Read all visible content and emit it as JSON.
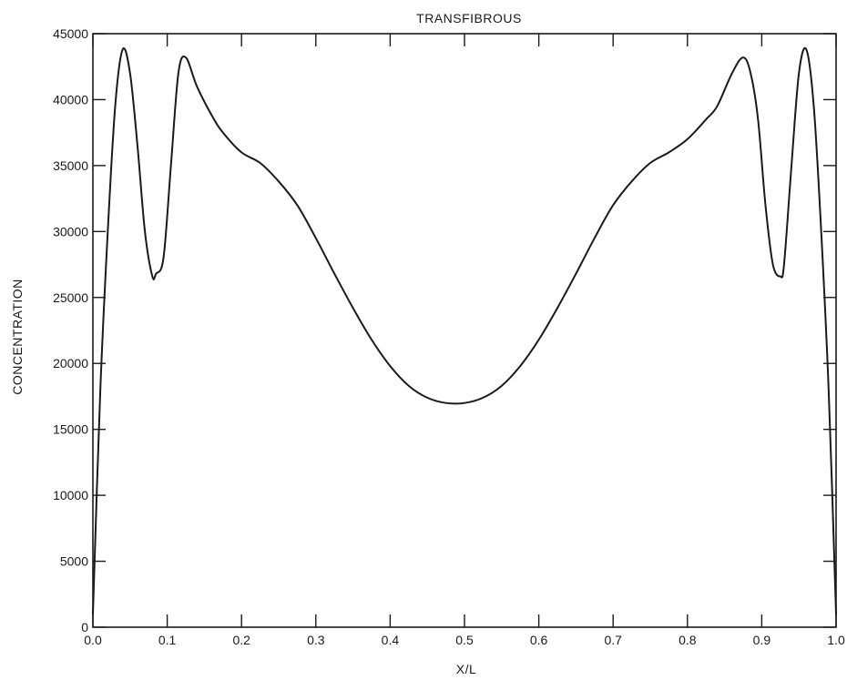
{
  "chart_data": {
    "type": "line",
    "title": "TRANSFIBROUS",
    "xlabel": "X/L",
    "ylabel": "CONCENTRATION",
    "xlim": [
      0.0,
      1.0
    ],
    "ylim": [
      0,
      45000
    ],
    "grid": false,
    "x_ticks": [
      "0.0",
      "0.1",
      "0.2",
      "0.3",
      "0.4",
      "0.5",
      "0.6",
      "0.7",
      "0.8",
      "0.9",
      "1.0"
    ],
    "y_ticks": [
      "0",
      "5000",
      "10000",
      "15000",
      "20000",
      "25000",
      "30000",
      "35000",
      "40000",
      "45000"
    ],
    "series": [
      {
        "x": [
          0.0,
          0.01,
          0.02,
          0.03,
          0.04,
          0.05,
          0.06,
          0.07,
          0.08,
          0.085,
          0.095,
          0.105,
          0.115,
          0.125,
          0.14,
          0.16,
          0.175,
          0.2,
          0.225,
          0.25,
          0.275,
          0.3,
          0.325,
          0.35,
          0.375,
          0.4,
          0.425,
          0.45,
          0.475,
          0.5,
          0.525,
          0.55,
          0.575,
          0.6,
          0.625,
          0.65,
          0.675,
          0.7,
          0.725,
          0.75,
          0.775,
          0.8,
          0.825,
          0.84,
          0.86,
          0.875,
          0.885,
          0.895,
          0.905,
          0.915,
          0.925,
          0.93,
          0.94,
          0.95,
          0.96,
          0.97,
          0.98,
          0.99,
          1.0
        ],
        "y": [
          1000,
          18000,
          30000,
          39500,
          43800,
          42000,
          36500,
          30000,
          26600,
          26800,
          28000,
          35000,
          42000,
          43200,
          41000,
          38800,
          37500,
          36000,
          35200,
          33800,
          32000,
          29500,
          26800,
          24200,
          21800,
          19800,
          18300,
          17400,
          17000,
          17000,
          17400,
          18300,
          19800,
          21800,
          24200,
          26800,
          29500,
          32000,
          33800,
          35200,
          36000,
          37000,
          38500,
          39500,
          42000,
          43200,
          42000,
          38500,
          32000,
          27500,
          26600,
          27500,
          35000,
          42000,
          43800,
          39500,
          30000,
          18000,
          1000
        ]
      }
    ]
  }
}
